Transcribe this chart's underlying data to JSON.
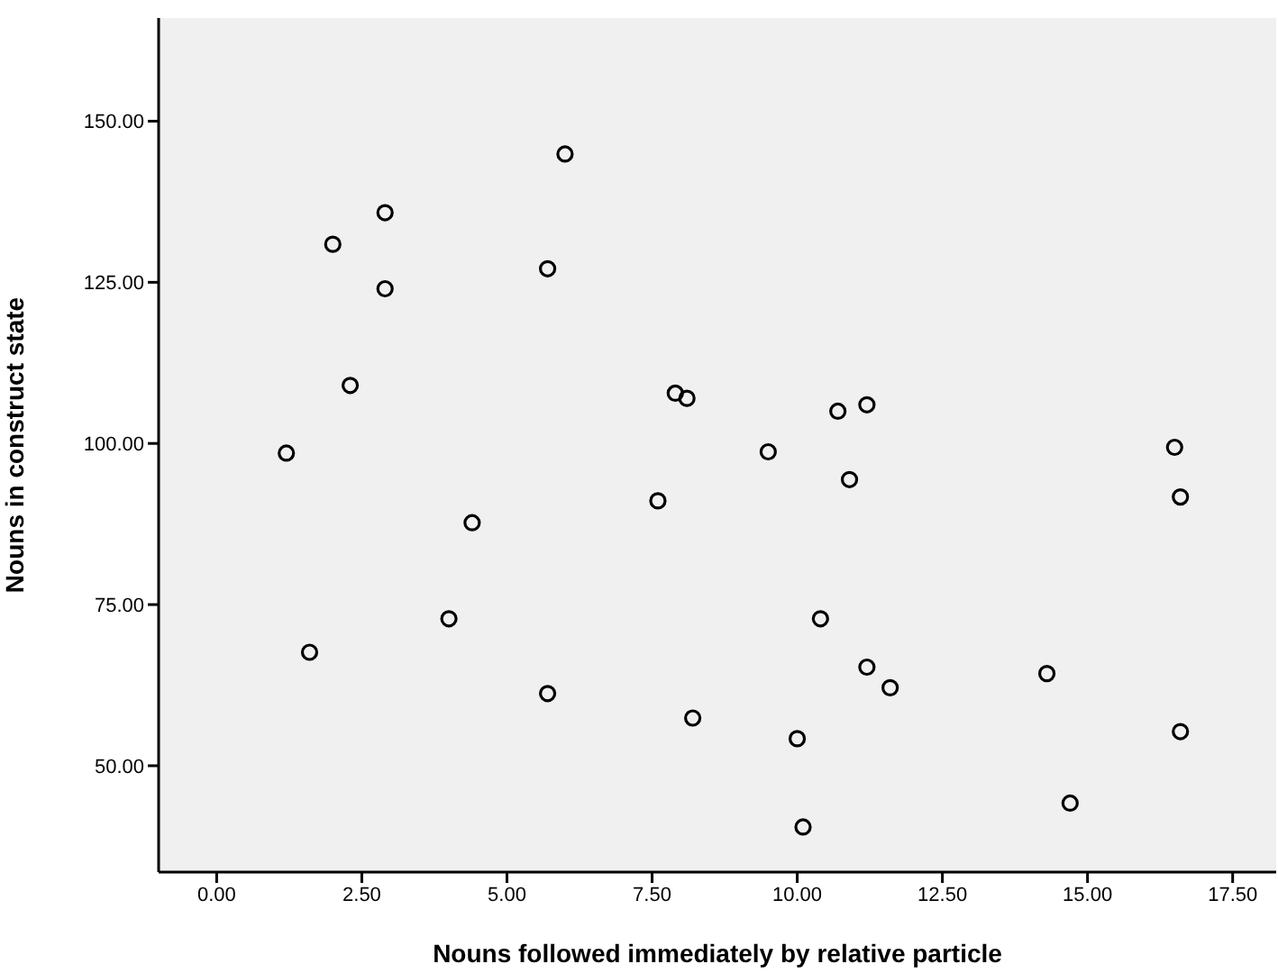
{
  "chart_data": {
    "type": "scatter",
    "xlabel": "Nouns followed immediately by relative particle",
    "ylabel": "Nouns in construct state",
    "x": [
      1.2,
      1.6,
      2.0,
      2.3,
      2.9,
      2.9,
      4.0,
      4.4,
      5.7,
      5.7,
      6.0,
      7.6,
      7.9,
      8.1,
      8.2,
      9.5,
      10.0,
      10.1,
      10.4,
      10.7,
      10.9,
      11.2,
      11.2,
      11.6,
      14.3,
      14.7,
      16.5,
      16.6,
      16.6
    ],
    "series": [
      {
        "color": "#000000",
        "values": [
          98.5,
          67.6,
          130.9,
          109.0,
          135.8,
          124.0,
          72.8,
          87.7,
          61.2,
          127.1,
          144.9,
          91.1,
          107.8,
          107.0,
          57.4,
          98.7,
          54.2,
          40.5,
          72.8,
          105.0,
          94.4,
          106.0,
          65.3,
          62.1,
          64.3,
          44.2,
          99.4,
          91.7,
          55.3
        ]
      }
    ],
    "xlim": [
      -1,
      18.25
    ],
    "ylim": [
      33.5,
      166
    ],
    "xticks": [
      {
        "value": 0,
        "label": "0.00"
      },
      {
        "value": 2.5,
        "label": "2.50"
      },
      {
        "value": 5,
        "label": "5.00"
      },
      {
        "value": 7.5,
        "label": "7.50"
      },
      {
        "value": 10,
        "label": "10.00"
      },
      {
        "value": 12.5,
        "label": "12.50"
      },
      {
        "value": 15,
        "label": "15.00"
      },
      {
        "value": 17.5,
        "label": "17.50"
      }
    ],
    "yticks": [
      {
        "value": 50,
        "label": "50.00"
      },
      {
        "value": 75,
        "label": "75.00"
      },
      {
        "value": 100,
        "label": "100.00"
      },
      {
        "value": 125,
        "label": "125.00"
      },
      {
        "value": 150,
        "label": "150.00"
      }
    ],
    "grid": false,
    "legend": false,
    "marker": "circle"
  }
}
